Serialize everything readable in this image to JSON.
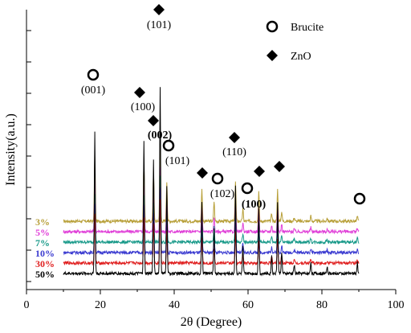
{
  "chart_data": {
    "type": "line",
    "xlabel": "2θ (Degree)",
    "ylabel": "Intensity(a.u.)",
    "xlim": [
      0,
      100
    ],
    "x_ticks": [
      "0",
      "20",
      "40",
      "60",
      "80",
      "100"
    ],
    "grid": false,
    "legend": [
      {
        "label": "Brucite",
        "marker": "circle"
      },
      {
        "label": "ZnO",
        "marker": "diamond"
      }
    ],
    "x_range": [
      10,
      90
    ],
    "series": [
      {
        "name": "3%",
        "color": "#b8a03a",
        "offset": 5,
        "peak_scale": 0.45
      },
      {
        "name": "5%",
        "color": "#e040d8",
        "offset": 4,
        "peak_scale": 0.35
      },
      {
        "name": "7%",
        "color": "#1a9a8a",
        "offset": 3,
        "peak_scale": 0.35
      },
      {
        "name": "10%",
        "color": "#3a3ad0",
        "offset": 2,
        "peak_scale": 0.35
      },
      {
        "name": "30%",
        "color": "#e02020",
        "offset": 1,
        "peak_scale": 0.35
      },
      {
        "name": "50%",
        "color": "#000000",
        "offset": 0,
        "peak_scale": 1.0
      }
    ],
    "peaks": [
      {
        "x": 18.5,
        "h": 16
      },
      {
        "x": 31.8,
        "h": 15
      },
      {
        "x": 34.4,
        "h": 13
      },
      {
        "x": 36.2,
        "h": 21
      },
      {
        "x": 38.0,
        "h": 10
      },
      {
        "x": 47.5,
        "h": 8
      },
      {
        "x": 50.8,
        "h": 5
      },
      {
        "x": 56.6,
        "h": 10
      },
      {
        "x": 58.6,
        "h": 3
      },
      {
        "x": 62.9,
        "h": 7.5
      },
      {
        "x": 66.4,
        "h": 2
      },
      {
        "x": 68.0,
        "h": 8
      },
      {
        "x": 69.1,
        "h": 2.5
      },
      {
        "x": 72.5,
        "h": 1
      },
      {
        "x": 77.0,
        "h": 1.3
      },
      {
        "x": 81.4,
        "h": 0.8
      },
      {
        "x": 89.6,
        "h": 1.2
      }
    ],
    "annotations": [
      {
        "label": "(001)",
        "x": 18.5,
        "marker": "circle",
        "bold": false
      },
      {
        "label": "(100)",
        "x": 31.0,
        "marker": "diamond",
        "bold": false
      },
      {
        "label": "(101)",
        "x": 36.2,
        "marker": "diamond",
        "bold": false
      },
      {
        "label": "(002)",
        "x": 34.4,
        "marker": "diamond",
        "bold": true
      },
      {
        "label": "(101)",
        "x": 38.0,
        "marker": "circle",
        "bold": false
      },
      {
        "label": "(102)",
        "x": 51.5,
        "marker": "circle",
        "bold": false
      },
      {
        "label": "(110)",
        "x": 56.6,
        "marker": "diamond",
        "bold": false
      },
      {
        "label": "(100)",
        "x": 59.0,
        "marker": "circle",
        "bold": true
      },
      {
        "label": "",
        "x": 47.5,
        "marker": "diamond",
        "bold": false
      },
      {
        "label": "",
        "x": 62.9,
        "marker": "diamond",
        "bold": false
      },
      {
        "label": "",
        "x": 68.0,
        "marker": "diamond",
        "bold": false
      },
      {
        "label": "",
        "x": 89.6,
        "marker": "circle",
        "bold": false
      }
    ]
  }
}
